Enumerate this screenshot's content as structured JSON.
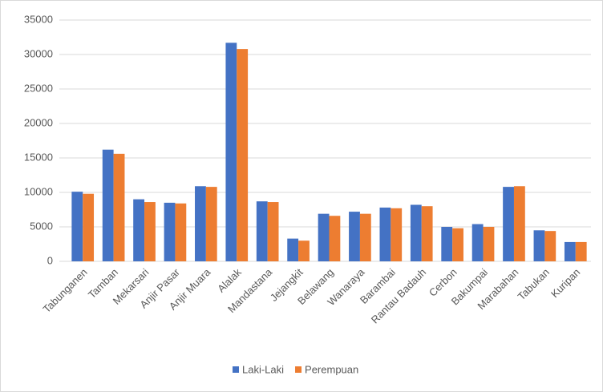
{
  "chart_data": {
    "type": "bar",
    "categories": [
      "Tabunganen",
      "Tamban",
      "Mekarsari",
      "Anjir Pasar",
      "Anjir Muara",
      "Alalak",
      "Mandastana",
      "Jejangkit",
      "Belawang",
      "Wanaraya",
      "Barambai",
      "Rantau Badauh",
      "Cerbon",
      "Bakumpai",
      "Marabahan",
      "Tabukan",
      "Kuripan"
    ],
    "series": [
      {
        "name": "Laki-Laki",
        "color": "#4472c4",
        "values": [
          10100,
          16200,
          9000,
          8500,
          10900,
          31700,
          8700,
          3300,
          6900,
          7200,
          7800,
          8200,
          5000,
          5400,
          10800,
          4500,
          2800
        ]
      },
      {
        "name": "Perempuan",
        "color": "#ed7d31",
        "values": [
          9800,
          15600,
          8600,
          8400,
          10800,
          30800,
          8600,
          3000,
          6600,
          6900,
          7700,
          8000,
          4800,
          5000,
          10900,
          4400,
          2800
        ]
      }
    ],
    "ylim": [
      0,
      35000
    ],
    "yticks": [
      0,
      5000,
      10000,
      15000,
      20000,
      25000,
      30000,
      35000
    ],
    "grid": true,
    "legend": "bottom"
  }
}
